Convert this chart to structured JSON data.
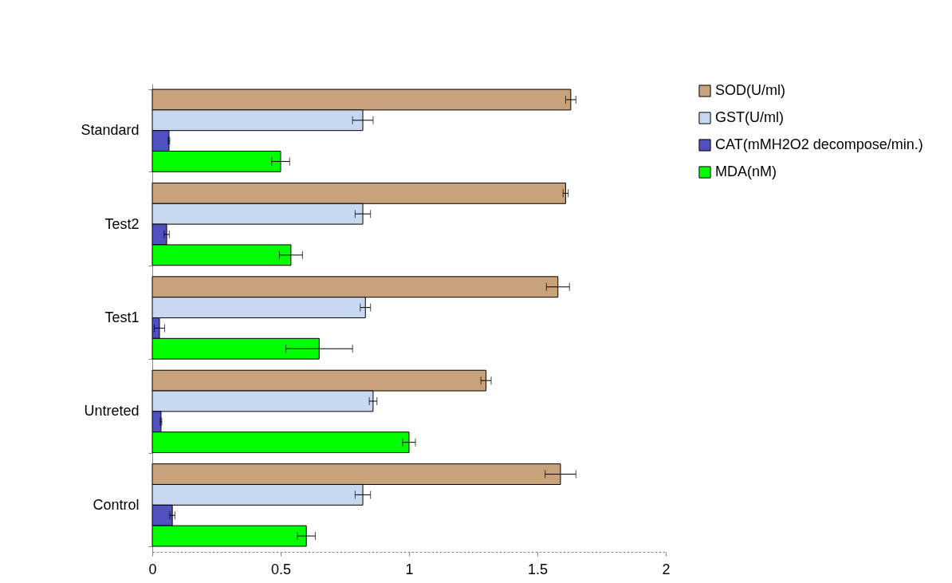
{
  "chart_data": {
    "type": "bar",
    "orientation": "horizontal",
    "categories": [
      "Standard",
      "Test2",
      "Test1",
      "Untreted",
      "Control"
    ],
    "series": [
      {
        "name": "SOD(U/ml)",
        "color": "#c8a27a",
        "values": [
          1.63,
          1.61,
          1.58,
          1.3,
          1.59
        ],
        "errors": [
          0.02,
          0.01,
          0.045,
          0.02,
          0.06
        ]
      },
      {
        "name": "GST(U/ml)",
        "color": "#c6d9f1",
        "values": [
          0.82,
          0.82,
          0.83,
          0.86,
          0.82
        ],
        "errors": [
          0.04,
          0.03,
          0.02,
          0.015,
          0.03
        ]
      },
      {
        "name": "CAT(mMH2O2 decompose/min.)",
        "color": "#5050c0",
        "values": [
          0.065,
          0.056,
          0.028,
          0.034,
          0.078
        ],
        "errors": [
          0.003,
          0.01,
          0.02,
          0.003,
          0.01
        ]
      },
      {
        "name": "MDA(nM)",
        "color": "#00ff00",
        "values": [
          0.5,
          0.54,
          0.65,
          1.0,
          0.6
        ],
        "errors": [
          0.035,
          0.045,
          0.13,
          0.025,
          0.035
        ]
      }
    ],
    "xlim": [
      0,
      2
    ],
    "xticks": [
      0,
      0.5,
      1,
      1.5,
      2
    ],
    "grid": false,
    "legend": "right"
  }
}
